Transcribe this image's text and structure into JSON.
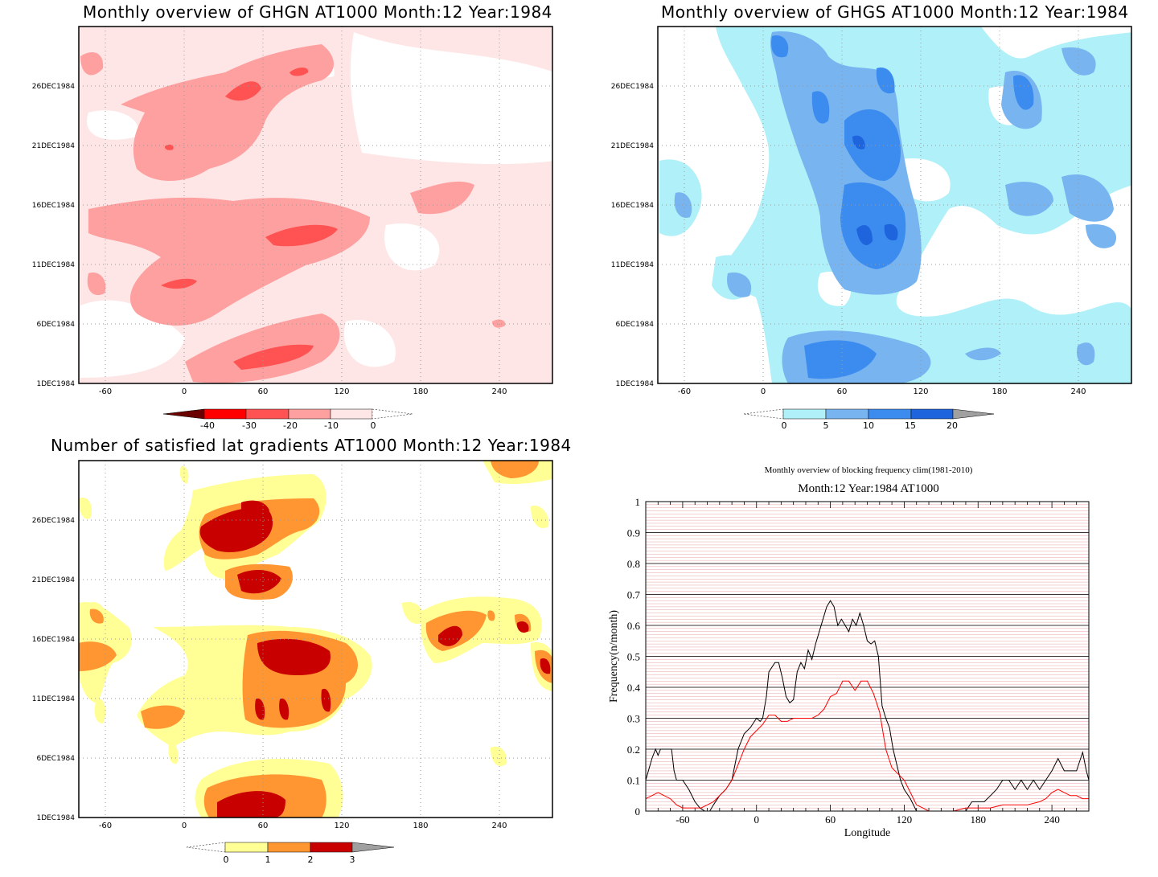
{
  "panels": {
    "ghgn": {
      "title": "Monthly overview of GHGN AT1000 Month:12 Year:1984",
      "yticks": [
        "26DEC1984",
        "21DEC1984",
        "16DEC1984",
        "11DEC1984",
        "6DEC1984",
        "1DEC1984"
      ],
      "xticks": [
        "-60",
        "0",
        "60",
        "120",
        "180",
        "240"
      ],
      "colorbar": {
        "labels": [
          "-40",
          "-30",
          "-20",
          "-10",
          "0"
        ],
        "colors": [
          "#6b0000",
          "#ff0000",
          "#ff5252",
          "#ffa0a0",
          "#ffe6e6"
        ]
      }
    },
    "ghgs": {
      "title": "Monthly overview of GHGS AT1000 Month:12 Year:1984",
      "yticks": [
        "26DEC1984",
        "21DEC1984",
        "16DEC1984",
        "11DEC1984",
        "6DEC1984",
        "1DEC1984"
      ],
      "xticks": [
        "-60",
        "0",
        "60",
        "120",
        "180",
        "240"
      ],
      "colorbar": {
        "labels": [
          "0",
          "5",
          "10",
          "15",
          "20"
        ],
        "colors": [
          "#b0f0f8",
          "#78b4f0",
          "#3c8cf0",
          "#1e64dc",
          "#a0a0a0"
        ]
      }
    },
    "lat": {
      "title": "Number of satisfied lat gradients AT1000 Month:12 Year:1984",
      "yticks": [
        "26DEC1984",
        "21DEC1984",
        "16DEC1984",
        "11DEC1984",
        "6DEC1984",
        "1DEC1984"
      ],
      "xticks": [
        "-60",
        "0",
        "60",
        "120",
        "180",
        "240"
      ],
      "colorbar": {
        "labels": [
          "0",
          "1",
          "2",
          "3"
        ],
        "colors": [
          "#ffff96",
          "#ff9632",
          "#c80000",
          "#a0a0a0"
        ]
      }
    }
  },
  "chart_data": {
    "type": "line",
    "title": "Monthly overview of blocking frequency clim(1981-2010)",
    "subtitle": "Month:12 Year:1984  AT1000",
    "xlabel": "Longitude",
    "ylabel": "Frequency(n/month)",
    "xlim": [
      -90,
      270
    ],
    "ylim": [
      0,
      1
    ],
    "xticks": [
      "-60",
      "0",
      "60",
      "120",
      "180",
      "240"
    ],
    "yticks": [
      "0",
      "0.1",
      "0.2",
      "0.3",
      "0.4",
      "0.5",
      "0.6",
      "0.7",
      "0.8",
      "0.9",
      "1"
    ],
    "series": [
      {
        "color": "#000000",
        "x": [
          -90,
          -85,
          -82,
          -80,
          -78,
          -75,
          -72,
          -69,
          -67,
          -65,
          -60,
          -55,
          -50,
          -46,
          -42,
          -38,
          -35,
          -30,
          -25,
          -20,
          -15,
          -10,
          -5,
          0,
          3,
          5,
          8,
          10,
          15,
          18,
          21,
          24,
          27,
          30,
          33,
          36,
          39,
          42,
          45,
          48,
          51,
          54,
          57,
          60,
          63,
          66,
          69,
          72,
          75,
          78,
          81,
          84,
          87,
          90,
          93,
          96,
          99,
          102,
          105,
          108,
          111,
          114,
          117,
          120,
          125,
          130,
          140,
          150,
          160,
          170,
          175,
          180,
          185,
          190,
          195,
          200,
          205,
          210,
          215,
          220,
          225,
          230,
          235,
          240,
          245,
          250,
          255,
          260,
          265,
          268,
          270
        ],
        "y": [
          0.1,
          0.17,
          0.2,
          0.18,
          0.2,
          0.2,
          0.2,
          0.2,
          0.13,
          0.1,
          0.1,
          0.07,
          0.03,
          0.01,
          0.0,
          0.0,
          0.02,
          0.05,
          0.07,
          0.1,
          0.2,
          0.25,
          0.27,
          0.3,
          0.29,
          0.3,
          0.37,
          0.45,
          0.48,
          0.48,
          0.43,
          0.37,
          0.35,
          0.36,
          0.45,
          0.48,
          0.46,
          0.52,
          0.49,
          0.54,
          0.58,
          0.62,
          0.66,
          0.68,
          0.66,
          0.6,
          0.62,
          0.6,
          0.58,
          0.62,
          0.6,
          0.64,
          0.6,
          0.55,
          0.54,
          0.55,
          0.5,
          0.34,
          0.3,
          0.27,
          0.2,
          0.15,
          0.1,
          0.07,
          0.04,
          0.0,
          0.0,
          0.0,
          0.0,
          0.0,
          0.03,
          0.03,
          0.03,
          0.05,
          0.07,
          0.1,
          0.1,
          0.07,
          0.1,
          0.07,
          0.1,
          0.07,
          0.1,
          0.13,
          0.17,
          0.13,
          0.13,
          0.13,
          0.19,
          0.13,
          0.1
        ]
      },
      {
        "color": "#ff0000",
        "x": [
          -90,
          -80,
          -75,
          -70,
          -65,
          -60,
          -55,
          -50,
          -45,
          -40,
          -35,
          -30,
          -25,
          -20,
          -15,
          -10,
          -5,
          0,
          5,
          10,
          15,
          20,
          25,
          30,
          35,
          40,
          45,
          50,
          55,
          60,
          65,
          70,
          75,
          80,
          85,
          90,
          95,
          100,
          105,
          110,
          115,
          120,
          125,
          130,
          135,
          140,
          150,
          160,
          170,
          180,
          190,
          200,
          210,
          220,
          230,
          235,
          240,
          245,
          250,
          255,
          260,
          265,
          270
        ],
        "y": [
          0.04,
          0.06,
          0.05,
          0.04,
          0.02,
          0.01,
          0.01,
          0.01,
          0.01,
          0.02,
          0.03,
          0.05,
          0.07,
          0.1,
          0.15,
          0.2,
          0.24,
          0.26,
          0.28,
          0.31,
          0.31,
          0.29,
          0.29,
          0.3,
          0.3,
          0.3,
          0.3,
          0.31,
          0.33,
          0.37,
          0.38,
          0.42,
          0.42,
          0.39,
          0.42,
          0.42,
          0.38,
          0.32,
          0.2,
          0.14,
          0.12,
          0.1,
          0.06,
          0.02,
          0.01,
          0.0,
          0.0,
          0.0,
          0.01,
          0.01,
          0.01,
          0.02,
          0.02,
          0.02,
          0.03,
          0.04,
          0.06,
          0.07,
          0.06,
          0.05,
          0.05,
          0.04,
          0.04
        ]
      }
    ]
  }
}
